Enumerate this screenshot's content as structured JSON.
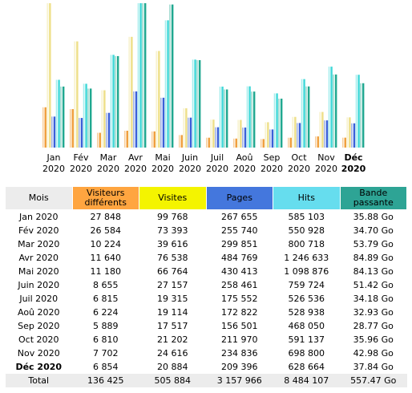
{
  "chart_data": {
    "type": "bar",
    "categories": [
      "Jan 2020",
      "Fév 2020",
      "Mar 2020",
      "Avr 2020",
      "Mai 2020",
      "Juin 2020",
      "Juil 2020",
      "Aoû 2020",
      "Sep 2020",
      "Oct 2020",
      "Nov 2020",
      "Déc 2020"
    ],
    "bold_category_index": 11,
    "series": [
      {
        "name": "Visiteurs différents",
        "color": "#f0a040",
        "header_color": "#ffa540",
        "values": [
          27848,
          26584,
          10224,
          11640,
          11180,
          8655,
          6815,
          6224,
          5889,
          6810,
          7702,
          6854
        ],
        "value_labels": [
          "27 848",
          "26 584",
          "10 224",
          "11 640",
          "11 180",
          "8 655",
          "6 815",
          "6 224",
          "5 889",
          "6 810",
          "7 702",
          "6 854"
        ]
      },
      {
        "name": "Visites",
        "color": "#eee08a",
        "header_color": "#f4f400",
        "values": [
          99768,
          73393,
          39616,
          76538,
          66764,
          27157,
          19315,
          19114,
          17517,
          21202,
          24616,
          20884
        ],
        "value_labels": [
          "99 768",
          "73 393",
          "39 616",
          "76 538",
          "66 764",
          "27 157",
          "19 315",
          "19 114",
          "17 517",
          "21 202",
          "24 616",
          "20 884"
        ]
      },
      {
        "name": "Pages",
        "color": "#3a60d8",
        "header_color": "#4477dd",
        "values": [
          267655,
          255740,
          299851,
          484769,
          430413,
          258461,
          175552,
          172822,
          156501,
          211970,
          234836,
          209396
        ],
        "value_labels": [
          "267 655",
          "255 740",
          "299 851",
          "484 769",
          "430 413",
          "258 461",
          "175 552",
          "172 822",
          "156 501",
          "211 970",
          "234 836",
          "209 396"
        ]
      },
      {
        "name": "Hits",
        "color": "#40d8d8",
        "header_color": "#66ddee",
        "values": [
          585103,
          550928,
          800718,
          1246633,
          1098876,
          759724,
          526536,
          528938,
          468050,
          591137,
          698800,
          628664
        ],
        "value_labels": [
          "585 103",
          "550 928",
          "800 718",
          "1 246 633",
          "1 098 876",
          "759 724",
          "526 536",
          "528 938",
          "468 050",
          "591 137",
          "698 800",
          "628 664"
        ]
      },
      {
        "name": "Bande passante",
        "color": "#20a890",
        "header_color": "#2ea495",
        "values": [
          35.88,
          34.7,
          53.79,
          84.89,
          84.13,
          51.42,
          34.18,
          32.93,
          28.77,
          35.96,
          42.98,
          37.84
        ],
        "value_labels": [
          "35.88 Go",
          "34.70 Go",
          "53.79 Go",
          "84.89 Go",
          "84.13 Go",
          "51.42 Go",
          "34.18 Go",
          "32.93 Go",
          "28.77 Go",
          "35.96 Go",
          "42.98 Go",
          "37.84 Go"
        ]
      }
    ]
  },
  "table": {
    "header_month": "Mois",
    "total": {
      "label": "Total",
      "values": [
        "136 425",
        "505 884",
        "3 157 966",
        "8 484 107",
        "557.47 Go"
      ]
    }
  }
}
